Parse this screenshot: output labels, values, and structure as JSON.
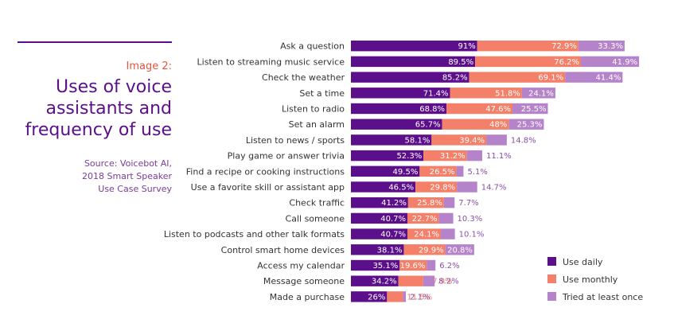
{
  "header": {
    "eyebrow": "Image 2:",
    "title_lines": [
      "Uses of voice",
      "assistants and",
      "frequency of use"
    ],
    "source_lines": [
      "Source: Voicebot AI,",
      "2018 Smart Speaker",
      "Use Case Survey"
    ]
  },
  "colors": {
    "daily": "#5c0f8b",
    "monthly": "#f4806a",
    "tried": "#b583c9",
    "tried_label": "#8a4fa8",
    "label": "#333333",
    "accent": "#e8543c"
  },
  "chart_data": {
    "type": "bar",
    "orientation": "horizontal",
    "stacked": true,
    "categories": [
      "Ask a question",
      "Listen to streaming music service",
      "Check the weather",
      "Set a time",
      "Listen to radio",
      "Set an alarm",
      "Listen to news / sports",
      "Play game or answer trivia",
      "Find a recipe or cooking instructions",
      "Use a favorite skill or assistant app",
      "Check traffic",
      "Call someone",
      "Listen to podcasts and other talk formats",
      "Control smart home devices",
      "Access my calendar",
      "Message someone",
      "Made a purchase"
    ],
    "series": [
      {
        "name": "Use daily",
        "values": [
          91,
          89.5,
          85.2,
          71.4,
          68.8,
          65.7,
          58.1,
          52.3,
          49.5,
          46.5,
          41.2,
          40.7,
          40.7,
          38.1,
          35.1,
          34.2,
          26
        ],
        "labels": [
          "91%",
          "89.5%",
          "85.2%",
          "71.4%",
          "68.8%",
          "65.7%",
          "58.1%",
          "52.3%",
          "49.5%",
          "46.5%",
          "41.2%",
          "40.7%",
          "40.7%",
          "38.1%",
          "35.1%",
          "34.2%",
          "26%"
        ]
      },
      {
        "name": "Use monthly",
        "values": [
          72.9,
          76.2,
          69.1,
          51.8,
          47.6,
          48,
          39.4,
          31.2,
          26.5,
          29.8,
          25.8,
          22.7,
          24.1,
          29.9,
          19.6,
          17.9,
          11.5
        ],
        "labels": [
          "72.9%",
          "76.2%",
          "69.1%",
          "51.8%",
          "47.6%",
          "48%",
          "39.4%",
          "31.2%",
          "26.5%",
          "29.8%",
          "25.8%",
          "22.7%",
          "24.1%",
          "29.9%",
          "19.6%",
          "17.9%",
          "11.5%"
        ]
      },
      {
        "name": "Tried at least once",
        "values": [
          33.3,
          41.9,
          41.4,
          24.1,
          25.5,
          25.3,
          14.8,
          11.1,
          5.1,
          14.7,
          7.7,
          10.3,
          10.1,
          20.8,
          6.2,
          8.2,
          2.1
        ],
        "labels": [
          "33.3%",
          "41.9%",
          "41.4%",
          "24.1%",
          "25.5%",
          "25.3%",
          "14.8%",
          "11.1%",
          "5.1%",
          "14.7%",
          "7.7%",
          "10.3%",
          "10.1%",
          "20.8%",
          "6.2%",
          "8.2%",
          "2.1%"
        ]
      }
    ],
    "xlim": [
      0,
      215
    ],
    "legend": "bottom-right",
    "grid": false
  }
}
